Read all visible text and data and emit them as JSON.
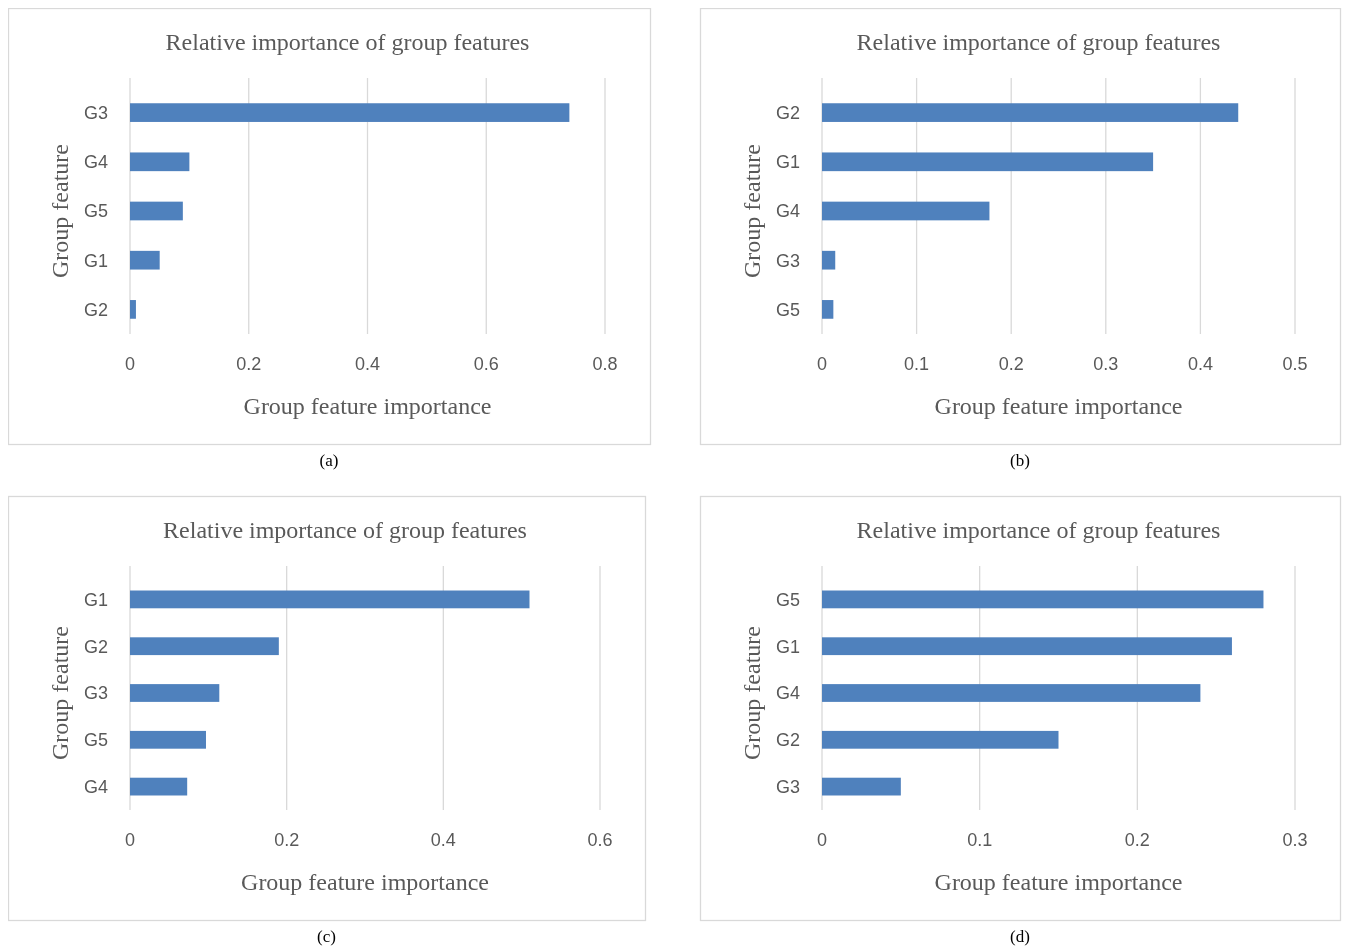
{
  "chart_data": [
    {
      "type": "bar",
      "orientation": "horizontal",
      "title": "Relative importance of group features",
      "xlabel": "Group feature importance",
      "ylabel": "Group feature",
      "categories": [
        "G3",
        "G4",
        "G5",
        "G1",
        "G2"
      ],
      "values": [
        0.74,
        0.1,
        0.089,
        0.05,
        0.01
      ],
      "color": "#4f81bd",
      "xlim": [
        0,
        0.8
      ],
      "xticks": [
        0,
        0.2,
        0.4,
        0.6,
        0.8
      ],
      "grid": "x",
      "annotations": [
        "(a)"
      ]
    },
    {
      "type": "bar",
      "orientation": "horizontal",
      "title": "Relative importance of group features",
      "xlabel": "Group feature importance",
      "ylabel": "Group feature",
      "categories": [
        "G2",
        "G1",
        "G4",
        "G3",
        "G5"
      ],
      "values": [
        0.44,
        0.35,
        0.177,
        0.014,
        0.012
      ],
      "color": "#4f81bd",
      "xlim": [
        0,
        0.5
      ],
      "xticks": [
        0,
        0.1,
        0.2,
        0.3,
        0.4,
        0.5
      ],
      "grid": "x",
      "annotations": [
        "(b)"
      ]
    },
    {
      "type": "bar",
      "orientation": "horizontal",
      "title": "Relative importance of group features",
      "xlabel": "Group feature importance",
      "ylabel": "Group feature",
      "categories": [
        "G1",
        "G2",
        "G3",
        "G5",
        "G4"
      ],
      "values": [
        0.51,
        0.19,
        0.114,
        0.097,
        0.073
      ],
      "color": "#4f81bd",
      "xlim": [
        0,
        0.6
      ],
      "xticks": [
        0,
        0.2,
        0.4,
        0.6
      ],
      "grid": "x",
      "annotations": [
        "(c)"
      ]
    },
    {
      "type": "bar",
      "orientation": "horizontal",
      "title": "Relative importance of group features",
      "xlabel": "Group feature importance",
      "ylabel": "Group feature",
      "categories": [
        "G5",
        "G1",
        "G4",
        "G2",
        "G3"
      ],
      "values": [
        0.28,
        0.26,
        0.24,
        0.15,
        0.05
      ],
      "color": "#4f81bd",
      "xlim": [
        0,
        0.3
      ],
      "xticks": [
        0,
        0.1,
        0.2,
        0.3
      ],
      "grid": "x",
      "annotations": [
        "(d)"
      ]
    }
  ]
}
